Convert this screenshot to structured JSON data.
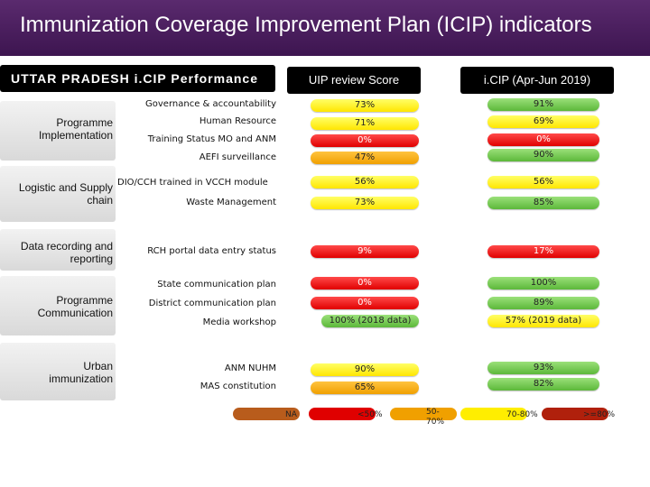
{
  "title": "Immunization Coverage Improvement Plan (ICIP) indicators",
  "state_header": "UTTAR PRADESH i.CIP Performance",
  "columns": {
    "uip": "UIP review Score",
    "icip": "i.CIP (Apr-Jun 2019)"
  },
  "categories": {
    "programme_implementation": "Programme Implementation",
    "logistic_supply": "Logistic and Supply chain",
    "data_recording": "Data recording and reporting",
    "programme_communication": "Programme Communication",
    "urban_immunization": "Urban immunization"
  },
  "rows": [
    {
      "label": "Governance & accountability",
      "uip": "73%",
      "uip_color": "yellow",
      "icip": "91%",
      "icip_color": "green"
    },
    {
      "label": "Human Resource",
      "uip": "71%",
      "uip_color": "yellow",
      "icip": "69%",
      "icip_color": "yellow"
    },
    {
      "label": "Training Status MO and ANM",
      "uip": "0%",
      "uip_color": "red",
      "icip": "0%",
      "icip_color": "red"
    },
    {
      "label": "AEFI surveillance",
      "uip": "47%",
      "uip_color": "orange",
      "icip": "90%",
      "icip_color": "green"
    },
    {
      "label": "DIO/CCH trained in VCCH module",
      "uip": "56%",
      "uip_color": "yellow",
      "icip": "56%",
      "icip_color": "yellow"
    },
    {
      "label": "Waste Management",
      "uip": "73%",
      "uip_color": "yellow",
      "icip": "85%",
      "icip_color": "green"
    },
    {
      "label": "RCH portal data entry status",
      "uip": "9%",
      "uip_color": "red",
      "icip": "17%",
      "icip_color": "red"
    },
    {
      "label": "State communication plan",
      "uip": "0%",
      "uip_color": "red",
      "icip": "100%",
      "icip_color": "green"
    },
    {
      "label": "District communication plan",
      "uip": "0%",
      "uip_color": "red",
      "icip": "89%",
      "icip_color": "green"
    },
    {
      "label": "Media workshop",
      "uip": "100% (2018 data)",
      "uip_color": "green",
      "icip": "57% (2019 data)",
      "icip_color": "yellow"
    },
    {
      "label": "ANM NUHM",
      "uip": "90%",
      "uip_color": "yellow",
      "icip": "93%",
      "icip_color": "green"
    },
    {
      "label": "MAS constitution",
      "uip": "65%",
      "uip_color": "orange",
      "icip": "82%",
      "icip_color": "green"
    }
  ],
  "legend": [
    {
      "label": "NA",
      "color": "#b85c1c"
    },
    {
      "label": "<50%",
      "color": "#e00000"
    },
    {
      "label": "50-70%",
      "color": "#f0a000"
    },
    {
      "label": "70-80%",
      "color": "#ffee00"
    },
    {
      "label": ">=80%",
      "color": "#b0200c"
    }
  ],
  "colors": {
    "title_bar": "#4a1d5e",
    "header_bg": "#000000",
    "green": "#5cb83a",
    "yellow": "#ffe600",
    "red": "#e00000",
    "orange": "#f0a000"
  }
}
